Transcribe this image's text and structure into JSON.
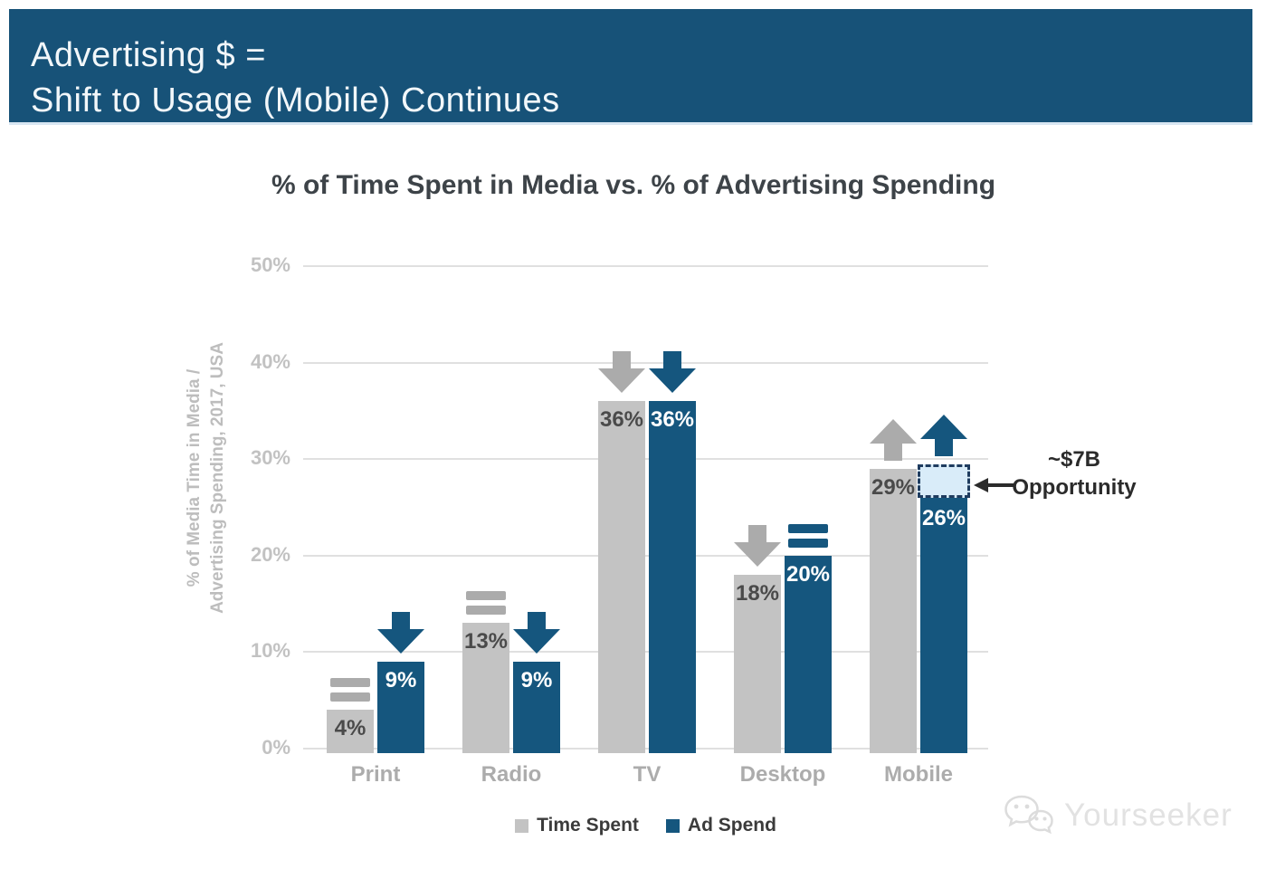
{
  "banner": {
    "line1": "Advertising $ =",
    "line2": "Shift to Usage (Mobile) Continues",
    "background": "#175278"
  },
  "chart_data": {
    "type": "bar",
    "title": "% of Time Spent in Media vs. % of Advertising Spending",
    "ylabel": [
      "% of Media Time in Media /",
      "Advertising Spending, 2017, USA"
    ],
    "categories": [
      "Print",
      "Radio",
      "TV",
      "Desktop",
      "Mobile"
    ],
    "series": [
      {
        "name": "Time Spent",
        "color": "#C3C3C3",
        "icon_color": "#ABABAB",
        "label_color": "#4A4A4A",
        "values": [
          4,
          13,
          36,
          18,
          29
        ],
        "labels": [
          "4%",
          "13%",
          "36%",
          "18%",
          "29%"
        ],
        "trends": [
          "equal",
          "equal",
          "down",
          "down",
          "up"
        ]
      },
      {
        "name": "Ad Spend",
        "color": "#15567E",
        "icon_color": "#15567E",
        "label_color": "#FFFFFF",
        "values": [
          9,
          9,
          36,
          20,
          26
        ],
        "labels": [
          "9%",
          "9%",
          "36%",
          "20%",
          "26%"
        ],
        "trends": [
          "down",
          "down",
          "down",
          "equal",
          "up"
        ]
      }
    ],
    "ylim": [
      0,
      50
    ],
    "yticks": [
      "0%",
      "10%",
      "20%",
      "30%",
      "40%",
      "50%"
    ],
    "grid": true,
    "legend_position": "bottom",
    "annotation": {
      "line1": "~$7B",
      "line2": "Opportunity",
      "category_index": 4,
      "series_index": 1,
      "box_top_value": 29.5,
      "box_fill": "#D9ECF9",
      "box_border": "#1F3C5F"
    }
  },
  "legend": [
    {
      "label": "Time Spent",
      "color": "#C3C3C3"
    },
    {
      "label": "Ad Spend",
      "color": "#15567E"
    }
  ],
  "watermark": {
    "text": "Yourseeker"
  }
}
